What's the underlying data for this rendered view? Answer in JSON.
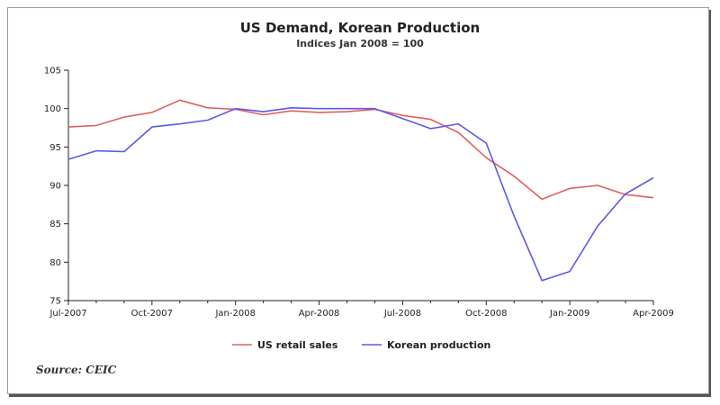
{
  "chart_data": {
    "type": "line",
    "title": "US Demand, Korean Production",
    "subtitle": "Indices Jan 2008 = 100",
    "xlabel": "",
    "ylabel": "",
    "ylim": [
      75,
      105
    ],
    "yticks": [
      75,
      80,
      85,
      90,
      95,
      100,
      105
    ],
    "xticks": [
      "Jul-2007",
      "Oct-2007",
      "Jan-2008",
      "Apr-2008",
      "Jul-2008",
      "Oct-2008",
      "Jan-2009",
      "Apr-2009"
    ],
    "x": [
      "Jul-2007",
      "Aug-2007",
      "Sep-2007",
      "Oct-2007",
      "Nov-2007",
      "Dec-2007",
      "Jan-2008",
      "Feb-2008",
      "Mar-2008",
      "Apr-2008",
      "May-2008",
      "Jun-2008",
      "Jul-2008",
      "Aug-2008",
      "Sep-2008",
      "Oct-2008",
      "Nov-2008",
      "Dec-2008",
      "Jan-2009",
      "Feb-2009",
      "Mar-2009",
      "Apr-2009"
    ],
    "series": [
      {
        "name": "US retail sales",
        "color": "#e06060",
        "values": [
          97.6,
          97.8,
          98.9,
          99.5,
          101.1,
          100.1,
          99.9,
          99.2,
          99.7,
          99.5,
          99.6,
          99.9,
          99.1,
          98.6,
          96.9,
          93.6,
          91.2,
          88.2,
          89.6,
          90.0,
          88.8,
          88.4
        ]
      },
      {
        "name": "Korean production",
        "color": "#5a5ae6",
        "values": [
          93.4,
          94.5,
          94.4,
          97.6,
          98.0,
          98.5,
          100.0,
          99.6,
          100.1,
          100.0,
          100.0,
          100.0,
          98.7,
          97.4,
          98.0,
          95.5,
          86.0,
          77.6,
          78.8,
          84.7,
          88.9,
          91.0
        ]
      }
    ],
    "grid": false,
    "legend_position": "bottom"
  },
  "source": "Source: CEIC"
}
